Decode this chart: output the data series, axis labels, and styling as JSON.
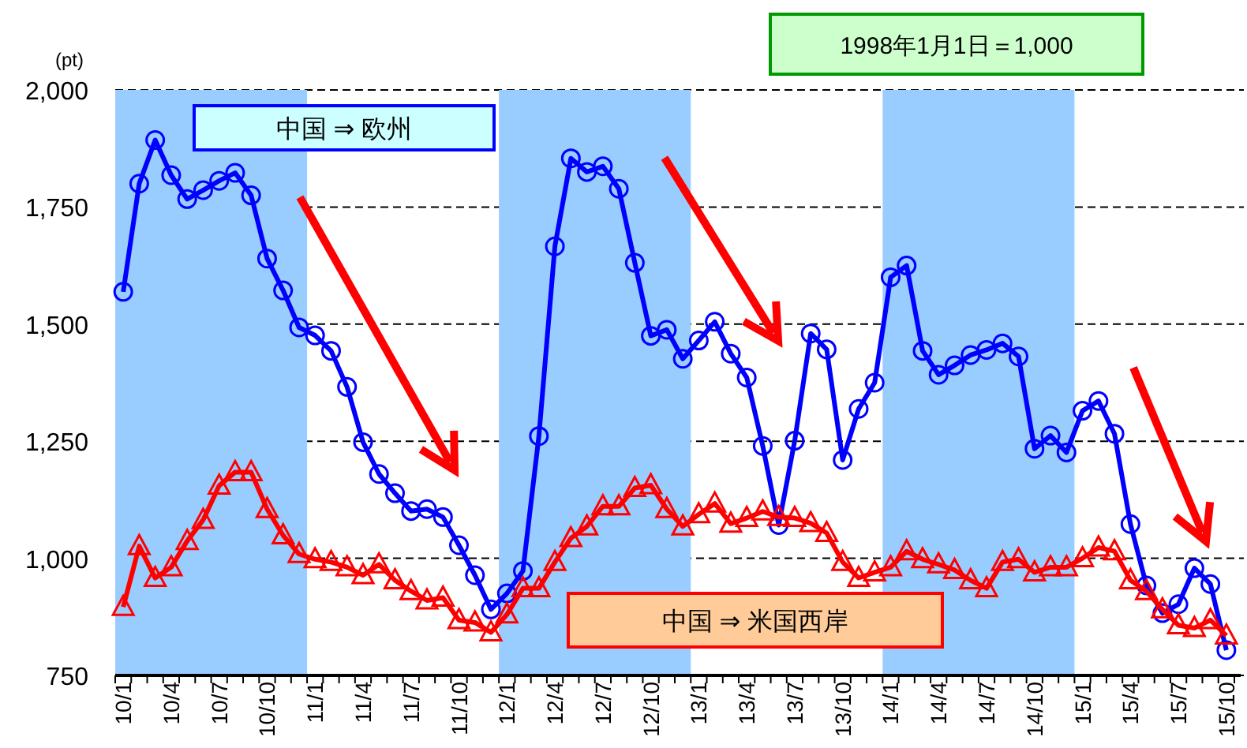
{
  "chart_data": {
    "type": "line",
    "ylabel": "(pt)",
    "annotations": [
      "1998年1月1日＝1,000"
    ],
    "categories": [
      "10/1",
      null,
      null,
      "10/4",
      null,
      null,
      "10/7",
      null,
      null,
      "10/10",
      null,
      null,
      "11/1",
      null,
      null,
      "11/4",
      null,
      null,
      "11/7",
      null,
      null,
      "11/10",
      null,
      null,
      "12/1",
      null,
      null,
      "12/4",
      null,
      null,
      "12/7",
      null,
      null,
      "12/10",
      null,
      null,
      "13/1",
      null,
      null,
      "13/4",
      null,
      null,
      "13/7",
      null,
      null,
      "13/10",
      null,
      null,
      "14/1",
      null,
      null,
      "14/4",
      null,
      null,
      "14/7",
      null,
      null,
      "14/10",
      null,
      null,
      "15/1",
      null,
      null,
      "15/4",
      null,
      null,
      "15/7",
      null,
      null,
      "15/10"
    ],
    "series": [
      {
        "name": "中国 ⇒ 欧州",
        "color": "#0000ff",
        "marker": "circle",
        "values": [
          1569,
          1800,
          1893,
          1818,
          1767,
          1786,
          1806,
          1823,
          1775,
          1640,
          1572,
          1493,
          1476,
          1443,
          1366,
          1248,
          1180,
          1139,
          1101,
          1105,
          1088,
          1028,
          964,
          891,
          925,
          973,
          1261,
          1666,
          1854,
          1825,
          1837,
          1789,
          1631,
          1475,
          1488,
          1426,
          1465,
          1505,
          1437,
          1386,
          1240,
          1071,
          1251,
          1480,
          1446,
          1210,
          1319,
          1375,
          1600,
          1625,
          1443,
          1392,
          1412,
          1434,
          1445,
          1459,
          1431,
          1234,
          1262,
          1226,
          1315,
          1336,
          1266,
          1073,
          942,
          883,
          902,
          979,
          945,
          804
        ]
      },
      {
        "name": "中国 ⇒ 米国西岸",
        "color": "#ff0000",
        "marker": "triangle",
        "values": [
          896,
          1026,
          958,
          981,
          1037,
          1082,
          1155,
          1184,
          1184,
          1105,
          1049,
          1009,
          998,
          992,
          981,
          964,
          987,
          953,
          930,
          910,
          916,
          868,
          863,
          842,
          880,
          936,
          936,
          992,
          1043,
          1068,
          1111,
          1111,
          1150,
          1156,
          1105,
          1068,
          1094,
          1117,
          1074,
          1086,
          1100,
          1088,
          1086,
          1075,
          1054,
          992,
          958,
          970,
          981,
          1015,
          998,
          987,
          975,
          953,
          936,
          992,
          998,
          970,
          981,
          981,
          1000,
          1023,
          1015,
          953,
          930,
          891,
          857,
          851,
          868,
          835
        ]
      }
    ],
    "ylim": [
      750,
      2000
    ],
    "yticks": [
      750,
      {
        "value": 1000,
        "label": "1,000"
      },
      {
        "value": 1250,
        "label": "1,250"
      },
      {
        "value": 1500,
        "label": "1,500"
      },
      {
        "value": 1750,
        "label": "1,750"
      },
      {
        "value": 2000,
        "label": "2,000"
      }
    ],
    "grid": "y",
    "legend": false,
    "line_style": "solid",
    "bands": [
      {
        "axis": "x",
        "from": "10/1",
        "to": "11/1",
        "color": "#99ccff"
      },
      {
        "axis": "x",
        "from": "12/1",
        "to": "13/1",
        "color": "#99ccff"
      },
      {
        "axis": "x",
        "from": "14/1",
        "to": "15/1",
        "color": "#99ccff"
      }
    ]
  }
}
